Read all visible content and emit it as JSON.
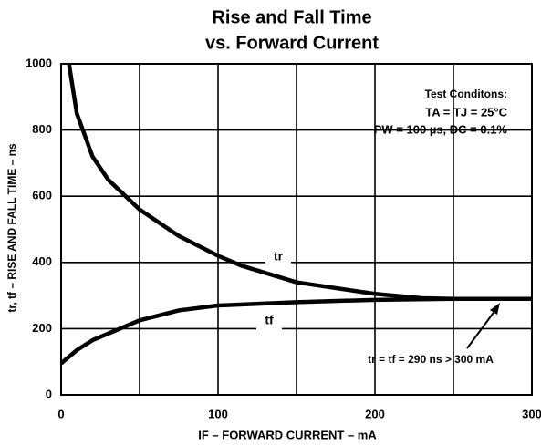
{
  "chart_data": {
    "type": "line",
    "title": "Rise and Fall Time",
    "subtitle": "vs. Forward Current",
    "x_label": "IF – FORWARD CURRENT – mA",
    "y_label": "tr, tf – RISE AND FALL TIME – ns",
    "series": [
      {
        "name": "tr",
        "color": "#000000",
        "x": [
          5,
          10,
          20,
          30,
          50,
          75,
          100,
          115,
          150,
          200,
          230,
          250,
          300
        ],
        "values": [
          1000,
          850,
          720,
          650,
          560,
          480,
          420,
          390,
          340,
          305,
          292,
          290,
          290
        ]
      },
      {
        "name": "tf",
        "color": "#000000",
        "x": [
          0,
          10,
          20,
          40,
          50,
          75,
          100,
          150,
          200,
          250,
          300
        ],
        "values": [
          95,
          135,
          165,
          205,
          225,
          255,
          270,
          280,
          287,
          290,
          290
        ]
      }
    ],
    "xlim": [
      0,
      300
    ],
    "ylim": [
      0,
      1000
    ],
    "xticks": [
      0,
      100,
      200,
      300
    ],
    "yticks": [
      0,
      200,
      400,
      600,
      800,
      1000
    ],
    "x_minor_grid": [
      50,
      150,
      250
    ],
    "grid": true,
    "annotations": [
      "Test Conditons:",
      "TA = TJ = 25°C",
      "PW = 100 µs, DC = 0.1%",
      "tr = tf = 290 ns > 300 mA"
    ]
  }
}
